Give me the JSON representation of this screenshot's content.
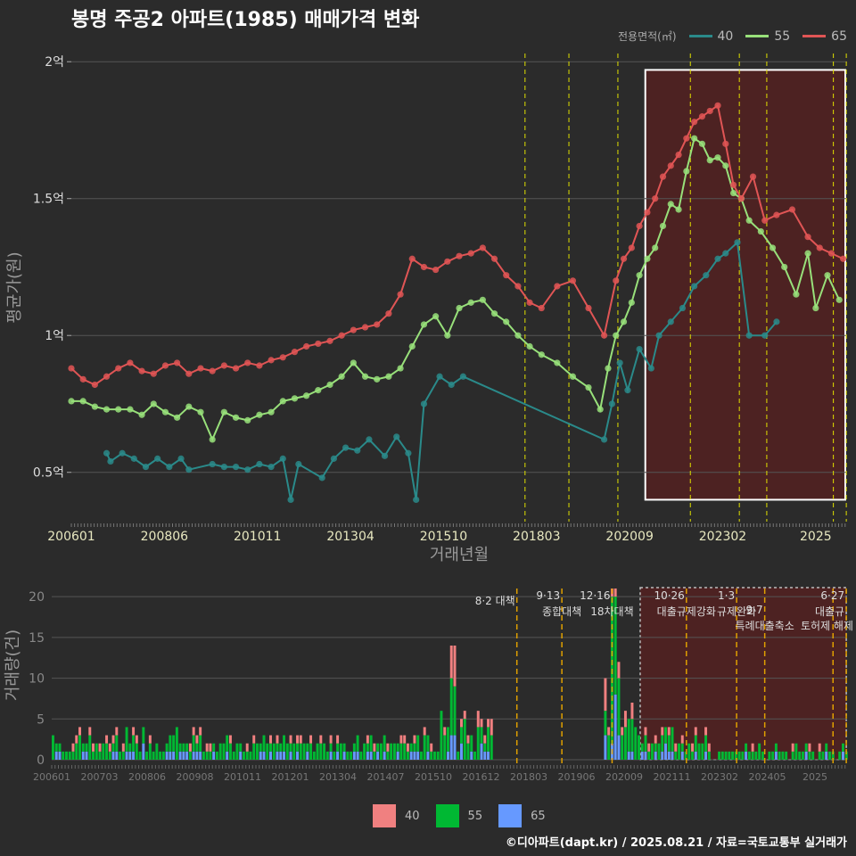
{
  "title": "봉명 주공2 아파트(1985) 매매가격 변화",
  "footer": "©디아파트(dapt.kr) / 2025.08.21 / 자료=국토교통부 실거래가",
  "colors": {
    "background": "#2b2b2b",
    "s40": "#2a8a8a",
    "s55": "#98e07a",
    "s65": "#e05555",
    "bar40": "#f08080",
    "bar55": "#00b833",
    "bar65": "#6699ff",
    "vline": "#e0e000",
    "vline_bottom": "#e0a000",
    "highlight": "#5a2020"
  },
  "legend_top": {
    "title": "전용면적(㎡)",
    "items": [
      "40",
      "55",
      "65"
    ]
  },
  "legend_bottom": {
    "items": [
      "40",
      "55",
      "65"
    ]
  },
  "chart_data": [
    {
      "type": "line",
      "title": "봉명 주공2 아파트(1985) 매매가격 변화",
      "xlabel": "거래년월",
      "ylabel": "평균가(원)",
      "x_tick_labels": [
        "200601",
        "200806",
        "201011",
        "201304",
        "201510",
        "201803",
        "202009",
        "202302",
        "2025"
      ],
      "y_tick_labels": [
        "0.5억",
        "1억",
        "1.5억",
        "2억"
      ],
      "ylim": [
        0.32,
        2.03
      ],
      "x_domain": [
        2006.0,
        2025.8
      ],
      "policy_lines": [
        2017.58,
        2018.7,
        2019.95,
        2021.8,
        2023.05,
        2023.75,
        2025.45,
        2025.78
      ],
      "highlight_range": [
        2020.65,
        2025.8
      ],
      "highlight_y": [
        0.4,
        1.97
      ],
      "series": [
        {
          "name": "40",
          "points": [
            [
              2006.9,
              0.57
            ],
            [
              2007.0,
              0.54
            ],
            [
              2007.3,
              0.57
            ],
            [
              2007.6,
              0.55
            ],
            [
              2007.9,
              0.52
            ],
            [
              2008.2,
              0.55
            ],
            [
              2008.5,
              0.52
            ],
            [
              2008.8,
              0.55
            ],
            [
              2009.0,
              0.51
            ],
            [
              2009.6,
              0.53
            ],
            [
              2009.9,
              0.52
            ],
            [
              2010.2,
              0.52
            ],
            [
              2010.5,
              0.51
            ],
            [
              2010.8,
              0.53
            ],
            [
              2011.1,
              0.52
            ],
            [
              2011.4,
              0.55
            ],
            [
              2011.6,
              0.4
            ],
            [
              2011.8,
              0.53
            ],
            [
              2012.4,
              0.48
            ],
            [
              2012.7,
              0.55
            ],
            [
              2013.0,
              0.59
            ],
            [
              2013.3,
              0.58
            ],
            [
              2013.6,
              0.62
            ],
            [
              2014.0,
              0.56
            ],
            [
              2014.3,
              0.63
            ],
            [
              2014.6,
              0.57
            ],
            [
              2014.8,
              0.4
            ],
            [
              2015.0,
              0.75
            ],
            [
              2015.4,
              0.85
            ],
            [
              2015.7,
              0.82
            ],
            [
              2016.0,
              0.85
            ],
            [
              2019.6,
              0.62
            ],
            [
              2019.8,
              0.75
            ],
            [
              2020.0,
              0.9
            ],
            [
              2020.2,
              0.8
            ],
            [
              2020.5,
              0.95
            ],
            [
              2020.8,
              0.88
            ],
            [
              2021.0,
              1.0
            ],
            [
              2021.3,
              1.05
            ],
            [
              2021.6,
              1.1
            ],
            [
              2021.9,
              1.18
            ],
            [
              2022.2,
              1.22
            ],
            [
              2022.5,
              1.28
            ],
            [
              2022.7,
              1.3
            ],
            [
              2023.0,
              1.34
            ],
            [
              2023.3,
              1.0
            ],
            [
              2023.7,
              1.0
            ],
            [
              2024.0,
              1.05
            ]
          ]
        },
        {
          "name": "55",
          "points": [
            [
              2006.0,
              0.76
            ],
            [
              2006.3,
              0.76
            ],
            [
              2006.6,
              0.74
            ],
            [
              2006.9,
              0.73
            ],
            [
              2007.2,
              0.73
            ],
            [
              2007.5,
              0.73
            ],
            [
              2007.8,
              0.71
            ],
            [
              2008.1,
              0.75
            ],
            [
              2008.4,
              0.72
            ],
            [
              2008.7,
              0.7
            ],
            [
              2009.0,
              0.74
            ],
            [
              2009.3,
              0.72
            ],
            [
              2009.6,
              0.62
            ],
            [
              2009.9,
              0.72
            ],
            [
              2010.2,
              0.7
            ],
            [
              2010.5,
              0.69
            ],
            [
              2010.8,
              0.71
            ],
            [
              2011.1,
              0.72
            ],
            [
              2011.4,
              0.76
            ],
            [
              2011.7,
              0.77
            ],
            [
              2012.0,
              0.78
            ],
            [
              2012.3,
              0.8
            ],
            [
              2012.6,
              0.82
            ],
            [
              2012.9,
              0.85
            ],
            [
              2013.2,
              0.9
            ],
            [
              2013.5,
              0.85
            ],
            [
              2013.8,
              0.84
            ],
            [
              2014.1,
              0.85
            ],
            [
              2014.4,
              0.88
            ],
            [
              2014.7,
              0.96
            ],
            [
              2015.0,
              1.04
            ],
            [
              2015.3,
              1.07
            ],
            [
              2015.6,
              1.0
            ],
            [
              2015.9,
              1.1
            ],
            [
              2016.2,
              1.12
            ],
            [
              2016.5,
              1.13
            ],
            [
              2016.8,
              1.08
            ],
            [
              2017.1,
              1.05
            ],
            [
              2017.4,
              1.0
            ],
            [
              2017.7,
              0.96
            ],
            [
              2018.0,
              0.93
            ],
            [
              2018.4,
              0.9
            ],
            [
              2018.8,
              0.85
            ],
            [
              2019.2,
              0.81
            ],
            [
              2019.5,
              0.73
            ],
            [
              2019.7,
              0.88
            ],
            [
              2019.9,
              1.0
            ],
            [
              2020.1,
              1.05
            ],
            [
              2020.3,
              1.12
            ],
            [
              2020.5,
              1.22
            ],
            [
              2020.7,
              1.28
            ],
            [
              2020.9,
              1.32
            ],
            [
              2021.1,
              1.4
            ],
            [
              2021.3,
              1.48
            ],
            [
              2021.5,
              1.46
            ],
            [
              2021.7,
              1.6
            ],
            [
              2021.9,
              1.72
            ],
            [
              2022.1,
              1.7
            ],
            [
              2022.3,
              1.64
            ],
            [
              2022.5,
              1.65
            ],
            [
              2022.7,
              1.62
            ],
            [
              2022.9,
              1.52
            ],
            [
              2023.1,
              1.5
            ],
            [
              2023.3,
              1.42
            ],
            [
              2023.6,
              1.38
            ],
            [
              2023.9,
              1.32
            ],
            [
              2024.2,
              1.25
            ],
            [
              2024.5,
              1.15
            ],
            [
              2024.8,
              1.3
            ],
            [
              2025.0,
              1.1
            ],
            [
              2025.3,
              1.22
            ],
            [
              2025.6,
              1.13
            ]
          ]
        },
        {
          "name": "65",
          "points": [
            [
              2006.0,
              0.88
            ],
            [
              2006.3,
              0.84
            ],
            [
              2006.6,
              0.82
            ],
            [
              2006.9,
              0.85
            ],
            [
              2007.2,
              0.88
            ],
            [
              2007.5,
              0.9
            ],
            [
              2007.8,
              0.87
            ],
            [
              2008.1,
              0.86
            ],
            [
              2008.4,
              0.89
            ],
            [
              2008.7,
              0.9
            ],
            [
              2009.0,
              0.86
            ],
            [
              2009.3,
              0.88
            ],
            [
              2009.6,
              0.87
            ],
            [
              2009.9,
              0.89
            ],
            [
              2010.2,
              0.88
            ],
            [
              2010.5,
              0.9
            ],
            [
              2010.8,
              0.89
            ],
            [
              2011.1,
              0.91
            ],
            [
              2011.4,
              0.92
            ],
            [
              2011.7,
              0.94
            ],
            [
              2012.0,
              0.96
            ],
            [
              2012.3,
              0.97
            ],
            [
              2012.6,
              0.98
            ],
            [
              2012.9,
              1.0
            ],
            [
              2013.2,
              1.02
            ],
            [
              2013.5,
              1.03
            ],
            [
              2013.8,
              1.04
            ],
            [
              2014.1,
              1.08
            ],
            [
              2014.4,
              1.15
            ],
            [
              2014.7,
              1.28
            ],
            [
              2015.0,
              1.25
            ],
            [
              2015.3,
              1.24
            ],
            [
              2015.6,
              1.27
            ],
            [
              2015.9,
              1.29
            ],
            [
              2016.2,
              1.3
            ],
            [
              2016.5,
              1.32
            ],
            [
              2016.8,
              1.28
            ],
            [
              2017.1,
              1.22
            ],
            [
              2017.4,
              1.18
            ],
            [
              2017.7,
              1.12
            ],
            [
              2018.0,
              1.1
            ],
            [
              2018.4,
              1.18
            ],
            [
              2018.8,
              1.2
            ],
            [
              2019.2,
              1.1
            ],
            [
              2019.6,
              1.0
            ],
            [
              2019.9,
              1.2
            ],
            [
              2020.1,
              1.28
            ],
            [
              2020.3,
              1.32
            ],
            [
              2020.5,
              1.4
            ],
            [
              2020.7,
              1.45
            ],
            [
              2020.9,
              1.5
            ],
            [
              2021.1,
              1.58
            ],
            [
              2021.3,
              1.62
            ],
            [
              2021.5,
              1.66
            ],
            [
              2021.7,
              1.72
            ],
            [
              2021.9,
              1.78
            ],
            [
              2022.1,
              1.8
            ],
            [
              2022.3,
              1.82
            ],
            [
              2022.5,
              1.84
            ],
            [
              2022.7,
              1.7
            ],
            [
              2022.9,
              1.55
            ],
            [
              2023.1,
              1.5
            ],
            [
              2023.4,
              1.58
            ],
            [
              2023.7,
              1.42
            ],
            [
              2024.0,
              1.44
            ],
            [
              2024.4,
              1.46
            ],
            [
              2024.8,
              1.36
            ],
            [
              2025.1,
              1.32
            ],
            [
              2025.4,
              1.3
            ],
            [
              2025.7,
              1.28
            ]
          ]
        }
      ]
    },
    {
      "type": "bar",
      "ylabel": "거래량(건)",
      "x_tick_labels": [
        "200601",
        "200703",
        "200806",
        "200908",
        "201011",
        "201201",
        "201304",
        "201407",
        "201510",
        "201612",
        "201803",
        "201906",
        "202009",
        "202111",
        "202302",
        "202405",
        "2025"
      ],
      "y_tick_labels": [
        "0",
        "5",
        "10",
        "15",
        "20"
      ],
      "ylim": [
        0,
        21
      ],
      "annotations": [
        "8·2 대책",
        "9·13",
        "종합대책",
        "12·16",
        "18차대책",
        "10·26",
        "대출규제강화",
        "1·3",
        "규제완화",
        "9·7",
        "특례대출축소",
        "토허제 해제",
        "6·27",
        "대출규"
      ]
    }
  ]
}
